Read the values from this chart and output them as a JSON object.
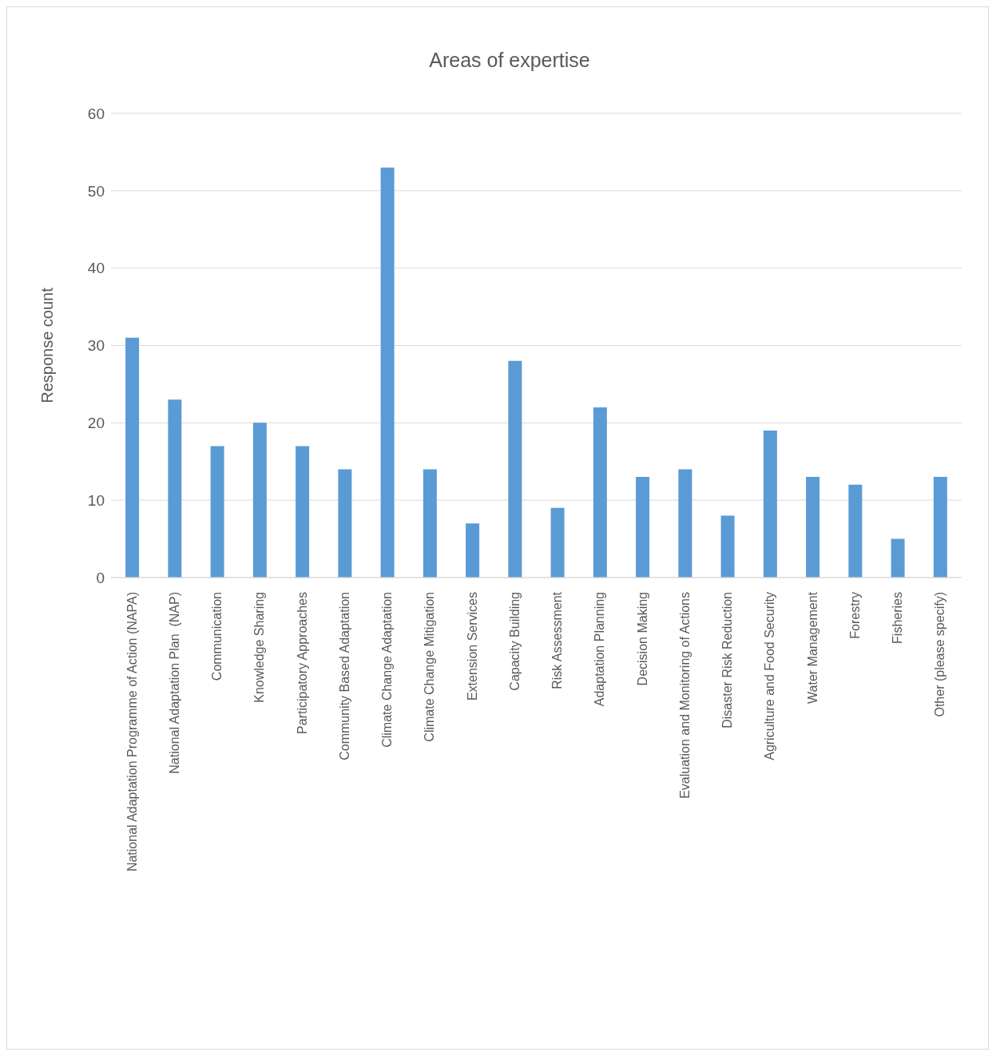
{
  "chart_data": {
    "type": "bar",
    "title": "Areas of expertise",
    "ylabel": "Response count",
    "categories": [
      "National Adaptation Programme of Action (NAPA)",
      "National Adaptation Plan  (NAP)",
      "Communication",
      "Knowledge Sharing",
      "Participatory Approaches",
      "Community Based Adaptation",
      "Climate Change Adaptation",
      "Climate Change Mitigation",
      "Extension Services",
      "Capacity Building",
      "Risk Assessment",
      "Adaptation Planning",
      "Decision Making",
      "Evaluation and Monitoring of Actions",
      "Disaster Risk Reduction",
      "Agriculture and Food Security",
      "Water Management",
      "Forestry",
      "Fisheries",
      "Other (please specify)"
    ],
    "values": [
      31,
      23,
      17,
      20,
      17,
      14,
      53,
      14,
      7,
      28,
      9,
      22,
      13,
      14,
      8,
      19,
      13,
      12,
      5,
      13
    ],
    "color": "#5b9bd5",
    "ylim": [
      0,
      60
    ],
    "yticks": [
      0,
      10,
      20,
      30,
      40,
      50,
      60
    ],
    "grid": "y"
  }
}
